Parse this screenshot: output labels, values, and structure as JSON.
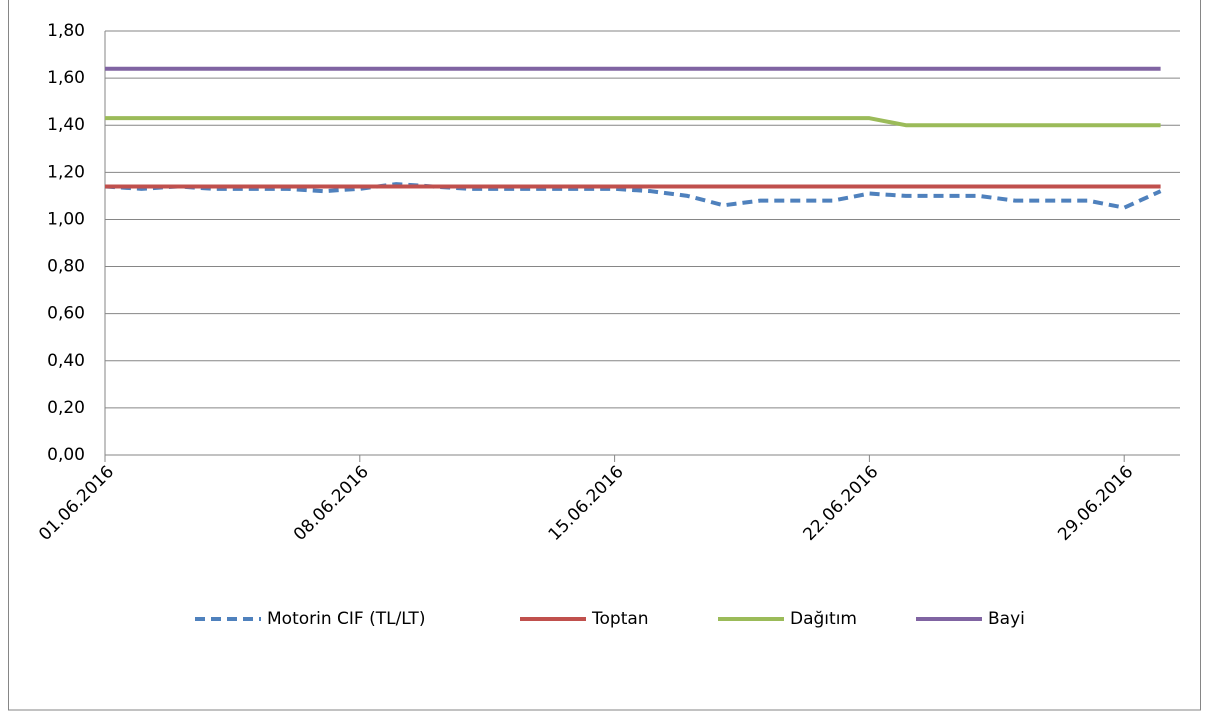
{
  "chart_data": {
    "type": "line",
    "x": [
      "01.06.2016",
      "02.06.2016",
      "03.06.2016",
      "04.06.2016",
      "05.06.2016",
      "06.06.2016",
      "07.06.2016",
      "08.06.2016",
      "09.06.2016",
      "10.06.2016",
      "11.06.2016",
      "12.06.2016",
      "13.06.2016",
      "14.06.2016",
      "15.06.2016",
      "16.06.2016",
      "17.06.2016",
      "18.06.2016",
      "19.06.2016",
      "20.06.2016",
      "21.06.2016",
      "22.06.2016",
      "23.06.2016",
      "24.06.2016",
      "25.06.2016",
      "26.06.2016",
      "27.06.2016",
      "28.06.2016",
      "29.06.2016",
      "30.06.2016"
    ],
    "xticks": [
      "01.06.2016",
      "08.06.2016",
      "15.06.2016",
      "22.06.2016",
      "29.06.2016"
    ],
    "series": [
      {
        "name": "Motorin CIF (TL/LT)",
        "color": "#4f81bd",
        "dashed": true,
        "values": [
          1.14,
          1.13,
          1.14,
          1.13,
          1.13,
          1.13,
          1.12,
          1.13,
          1.15,
          1.14,
          1.13,
          1.13,
          1.13,
          1.13,
          1.13,
          1.12,
          1.1,
          1.06,
          1.08,
          1.08,
          1.08,
          1.11,
          1.1,
          1.1,
          1.1,
          1.08,
          1.08,
          1.08,
          1.05,
          1.12
        ]
      },
      {
        "name": "Toptan",
        "color": "#c0504d",
        "values": [
          1.14,
          1.14,
          1.14,
          1.14,
          1.14,
          1.14,
          1.14,
          1.14,
          1.14,
          1.14,
          1.14,
          1.14,
          1.14,
          1.14,
          1.14,
          1.14,
          1.14,
          1.14,
          1.14,
          1.14,
          1.14,
          1.14,
          1.14,
          1.14,
          1.14,
          1.14,
          1.14,
          1.14,
          1.14,
          1.14
        ]
      },
      {
        "name": "Dağıtım",
        "color": "#9bbb59",
        "values": [
          1.43,
          1.43,
          1.43,
          1.43,
          1.43,
          1.43,
          1.43,
          1.43,
          1.43,
          1.43,
          1.43,
          1.43,
          1.43,
          1.43,
          1.43,
          1.43,
          1.43,
          1.43,
          1.43,
          1.43,
          1.43,
          1.43,
          1.4,
          1.4,
          1.4,
          1.4,
          1.4,
          1.4,
          1.4,
          1.4
        ]
      },
      {
        "name": "Bayi",
        "color": "#8064a2",
        "values": [
          1.64,
          1.64,
          1.64,
          1.64,
          1.64,
          1.64,
          1.64,
          1.64,
          1.64,
          1.64,
          1.64,
          1.64,
          1.64,
          1.64,
          1.64,
          1.64,
          1.64,
          1.64,
          1.64,
          1.64,
          1.64,
          1.64,
          1.64,
          1.64,
          1.64,
          1.64,
          1.64,
          1.64,
          1.64,
          1.64
        ]
      }
    ],
    "ylim": [
      0,
      1.8
    ],
    "yticks": [
      {
        "value": 0,
        "label": "0,00"
      },
      {
        "value": 0.2,
        "label": "0,20"
      },
      {
        "value": 0.4,
        "label": "0,40"
      },
      {
        "value": 0.6,
        "label": "0,60"
      },
      {
        "value": 0.8,
        "label": "0,80"
      },
      {
        "value": 1,
        "label": "1,00"
      },
      {
        "value": 1.2,
        "label": "1,20"
      },
      {
        "value": 1.4,
        "label": "1,40"
      },
      {
        "value": 1.6,
        "label": "1,60"
      },
      {
        "value": 1.8,
        "label": "1,80"
      }
    ],
    "grid": true,
    "legend": "bottom"
  }
}
